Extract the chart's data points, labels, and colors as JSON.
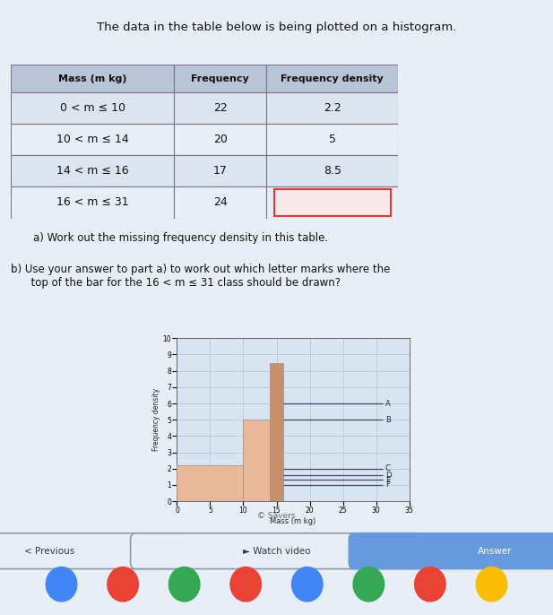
{
  "title": "The data in the table below is being plotted on a histogram.",
  "table": {
    "headers": [
      "Mass (m kg)",
      "Frequency",
      "Frequency density"
    ],
    "rows": [
      [
        "0 < m ≤ 10",
        "22",
        "2.2"
      ],
      [
        "10 < m ≤ 14",
        "20",
        "5"
      ],
      [
        "14 < m ≤ 16",
        "17",
        "8.5"
      ],
      [
        "16 < m ≤ 31",
        "24",
        ""
      ]
    ]
  },
  "question_a": "a) Work out the missing frequency density in this table.",
  "question_b": "b) Use your answer to part a) to work out which letter marks where the\n      top of the bar for the 16 < m ≤ 31 class should be drawn?",
  "histogram": {
    "bars": [
      {
        "x_start": 0,
        "x_end": 10,
        "height": 2.2,
        "color": "#e8b898"
      },
      {
        "x_start": 10,
        "x_end": 14,
        "height": 5.0,
        "color": "#e8b898"
      },
      {
        "x_start": 14,
        "x_end": 16,
        "height": 8.5,
        "color": "#c8906a"
      }
    ],
    "letters": [
      {
        "label": "A",
        "y": 6.0
      },
      {
        "label": "B",
        "y": 5.0
      },
      {
        "label": "C",
        "y": 2.0
      },
      {
        "label": "D",
        "y": 1.6
      },
      {
        "label": "E",
        "y": 1.3
      },
      {
        "label": "F",
        "y": 1.0
      }
    ],
    "letters_x_start": 16,
    "letters_x_end": 31,
    "xlabel": "Mass (m kg)",
    "ylabel": "Frequency density",
    "xlim": [
      0,
      35
    ],
    "ylim": [
      0,
      10
    ],
    "xticks": [
      0,
      5,
      10,
      15,
      20,
      25,
      30,
      35
    ],
    "yticks": [
      0,
      1,
      2,
      3,
      4,
      5,
      6,
      7,
      8,
      9,
      10
    ],
    "grid_color": "#aabbcc",
    "bar_edge_color": "#999999",
    "background_color": "#d8e4f0"
  },
  "footer": "© Savers",
  "bg_color": "#e8eef5",
  "table_header_bg": "#b8c4d8",
  "table_row_bg1": "#dce4f0",
  "table_row_bg2": "#e8eef8",
  "answer_box_color": "#ee3333",
  "answer_box_fill": "#f8e8e8"
}
